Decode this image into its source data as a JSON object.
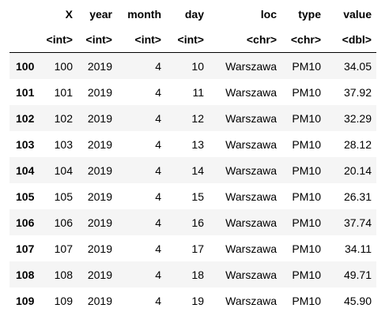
{
  "table": {
    "columns": [
      {
        "name": "X",
        "type": "<int>"
      },
      {
        "name": "year",
        "type": "<int>"
      },
      {
        "name": "month",
        "type": "<int>"
      },
      {
        "name": "day",
        "type": "<int>"
      },
      {
        "name": "loc",
        "type": "<chr>"
      },
      {
        "name": "type",
        "type": "<chr>"
      },
      {
        "name": "value",
        "type": "<dbl>"
      }
    ],
    "rows": [
      {
        "label": "100",
        "cells": [
          "100",
          "2019",
          "4",
          "10",
          "Warszawa",
          "PM10",
          "34.05"
        ]
      },
      {
        "label": "101",
        "cells": [
          "101",
          "2019",
          "4",
          "11",
          "Warszawa",
          "PM10",
          "37.92"
        ]
      },
      {
        "label": "102",
        "cells": [
          "102",
          "2019",
          "4",
          "12",
          "Warszawa",
          "PM10",
          "32.29"
        ]
      },
      {
        "label": "103",
        "cells": [
          "103",
          "2019",
          "4",
          "13",
          "Warszawa",
          "PM10",
          "28.12"
        ]
      },
      {
        "label": "104",
        "cells": [
          "104",
          "2019",
          "4",
          "14",
          "Warszawa",
          "PM10",
          "20.14"
        ]
      },
      {
        "label": "105",
        "cells": [
          "105",
          "2019",
          "4",
          "15",
          "Warszawa",
          "PM10",
          "26.31"
        ]
      },
      {
        "label": "106",
        "cells": [
          "106",
          "2019",
          "4",
          "16",
          "Warszawa",
          "PM10",
          "37.74"
        ]
      },
      {
        "label": "107",
        "cells": [
          "107",
          "2019",
          "4",
          "17",
          "Warszawa",
          "PM10",
          "34.11"
        ]
      },
      {
        "label": "108",
        "cells": [
          "108",
          "2019",
          "4",
          "18",
          "Warszawa",
          "PM10",
          "49.71"
        ]
      },
      {
        "label": "109",
        "cells": [
          "109",
          "2019",
          "4",
          "19",
          "Warszawa",
          "PM10",
          "45.90"
        ]
      }
    ]
  }
}
